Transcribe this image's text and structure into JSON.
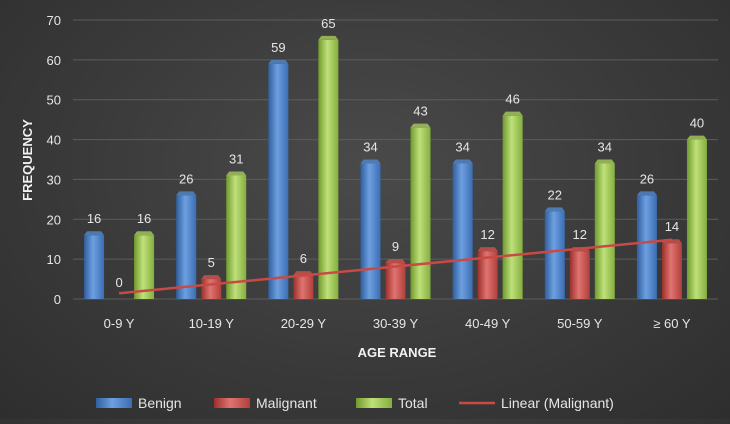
{
  "chart_data": {
    "type": "bar",
    "xlabel": "AGE RANGE",
    "ylabel": "FREQUENCY",
    "ylim": [
      0,
      70
    ],
    "yticks": [
      0,
      10,
      20,
      30,
      40,
      50,
      60,
      70
    ],
    "grid": true,
    "legend_position": "bottom",
    "categories": [
      "0-9 Y",
      "10-19 Y",
      "20-29 Y",
      "30-39 Y",
      "40-49 Y",
      "50-59 Y",
      "≥ 60 Y"
    ],
    "series": [
      {
        "name": "Benign",
        "color": "#4f81bd",
        "values": [
          16,
          26,
          59,
          34,
          34,
          22,
          26
        ]
      },
      {
        "name": "Malignant",
        "color": "#c0504d",
        "values": [
          0,
          5,
          6,
          9,
          12,
          12,
          14
        ]
      },
      {
        "name": "Total",
        "color": "#9bbb59",
        "values": [
          16,
          31,
          65,
          43,
          46,
          34,
          40
        ]
      }
    ],
    "trendline": {
      "name": "Linear (Malignant)",
      "series": "Malignant",
      "color": "#c0504d",
      "start": 1.43,
      "end": 14.86
    }
  }
}
